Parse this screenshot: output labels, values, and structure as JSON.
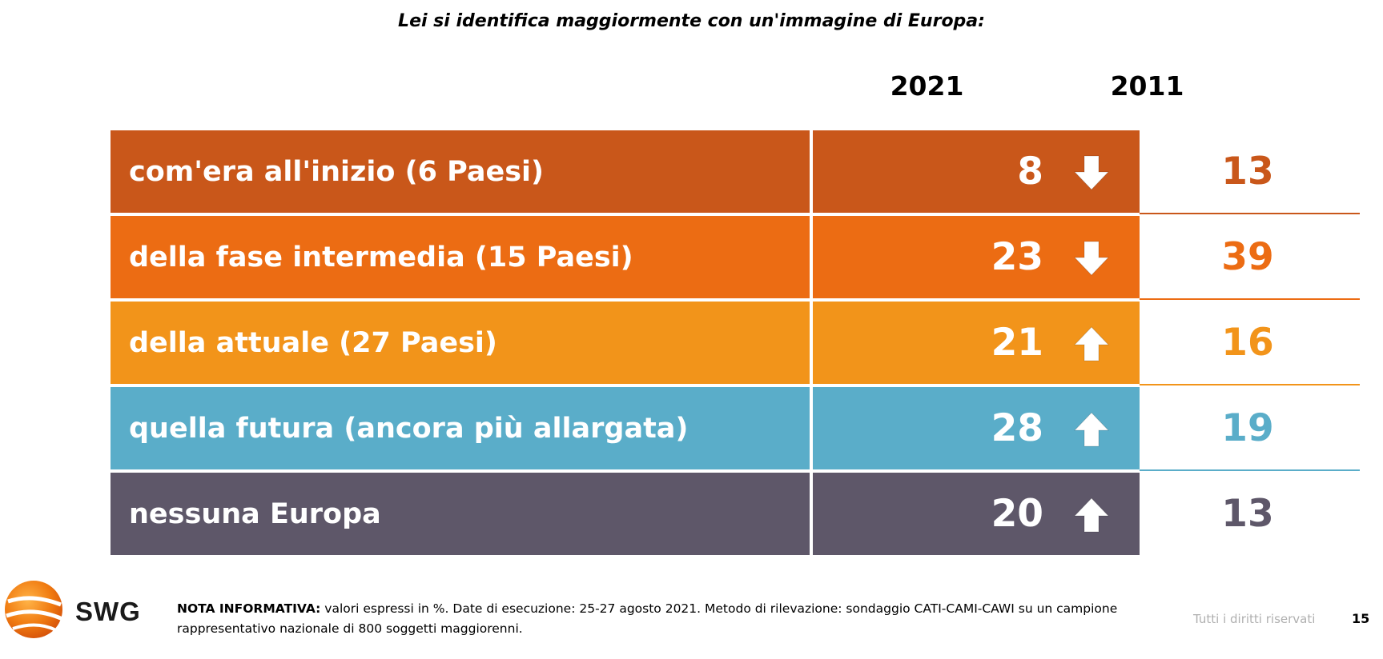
{
  "title": "Lei si identifica maggiormente con un'immagine di Europa:",
  "chart_data": {
    "type": "table",
    "columns": [
      "2021",
      "2011"
    ],
    "rows": [
      {
        "label": "com'era all'inizio (6 Paesi)",
        "v2021": "8",
        "v2011": "13",
        "trend": "down",
        "color": "#c9571a"
      },
      {
        "label": "della fase intermedia (15 Paesi)",
        "v2021": "23",
        "v2011": "39",
        "trend": "down",
        "color": "#ec6c13"
      },
      {
        "label": "della attuale (27 Paesi)",
        "v2021": "21",
        "v2011": "16",
        "trend": "up",
        "color": "#f2941a"
      },
      {
        "label": "quella futura (ancora più allargata)",
        "v2021": "28",
        "v2011": "19",
        "trend": "up",
        "color": "#5aadc9"
      },
      {
        "label": "nessuna Europa",
        "v2021": "20",
        "v2011": "13",
        "trend": "up",
        "color": "#5e5769"
      }
    ]
  },
  "footer": {
    "logo_text": "SWG",
    "note_label": "NOTA INFORMATIVA:",
    "note_text": " valori espressi in %. Date di esecuzione: 25-27 agosto 2021. Metodo di rilevazione: sondaggio CATI-CAMI-CAWI su un campione rappresentativo nazionale di 800 soggetti maggiorenni.",
    "rights": "Tutti i diritti riservati",
    "page_number": "15"
  }
}
